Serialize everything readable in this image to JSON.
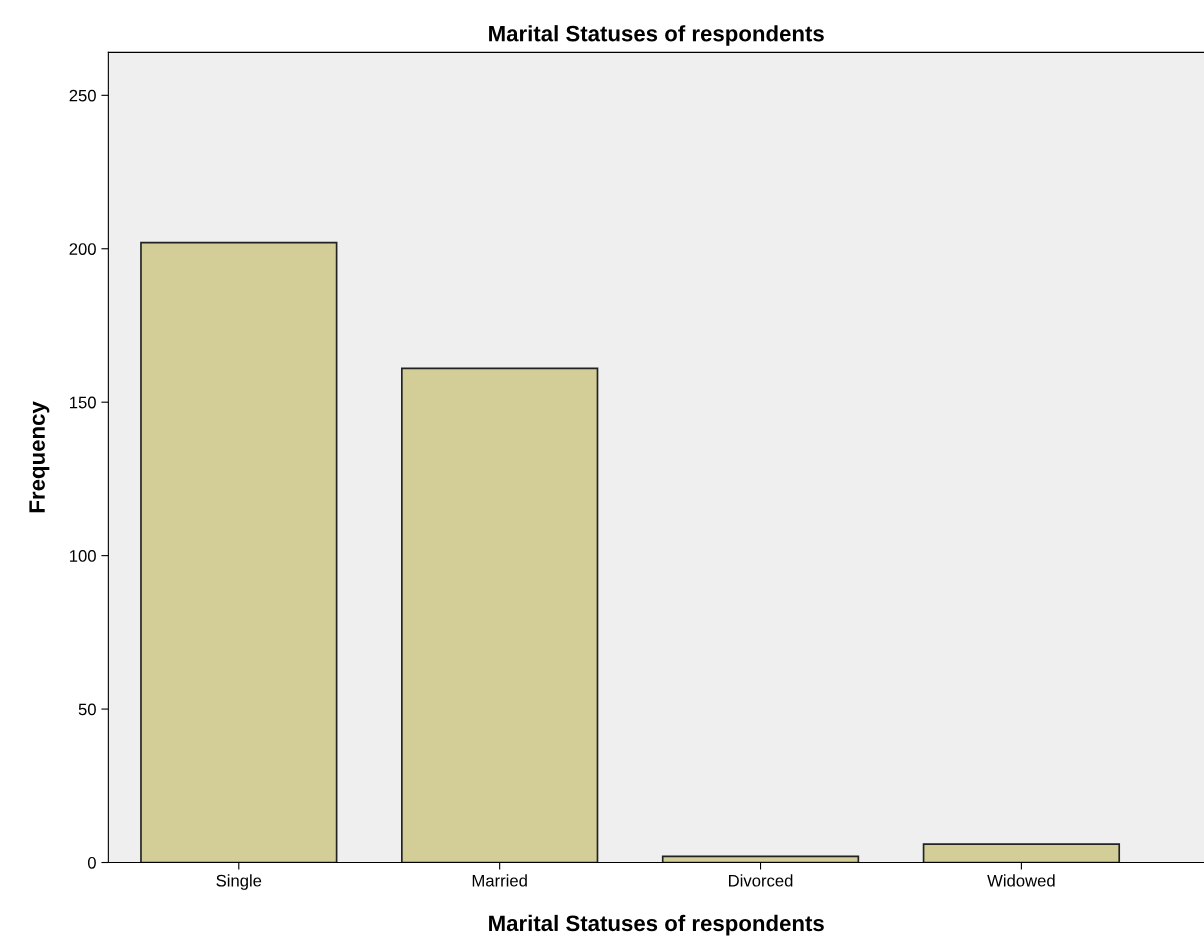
{
  "chart_data": {
    "type": "bar",
    "title": "Marital Statuses of respondents",
    "xlabel": "Marital Statuses of respondents",
    "ylabel": "Frequency",
    "categories": [
      "Single",
      "Married",
      "Divorced",
      "Widowed"
    ],
    "values": [
      202,
      161,
      2,
      6
    ],
    "color": "#d3ce97",
    "ylim": [
      0,
      264
    ],
    "yticks": [
      0,
      50,
      100,
      150,
      200,
      250
    ],
    "grid": false,
    "legend": false
  }
}
